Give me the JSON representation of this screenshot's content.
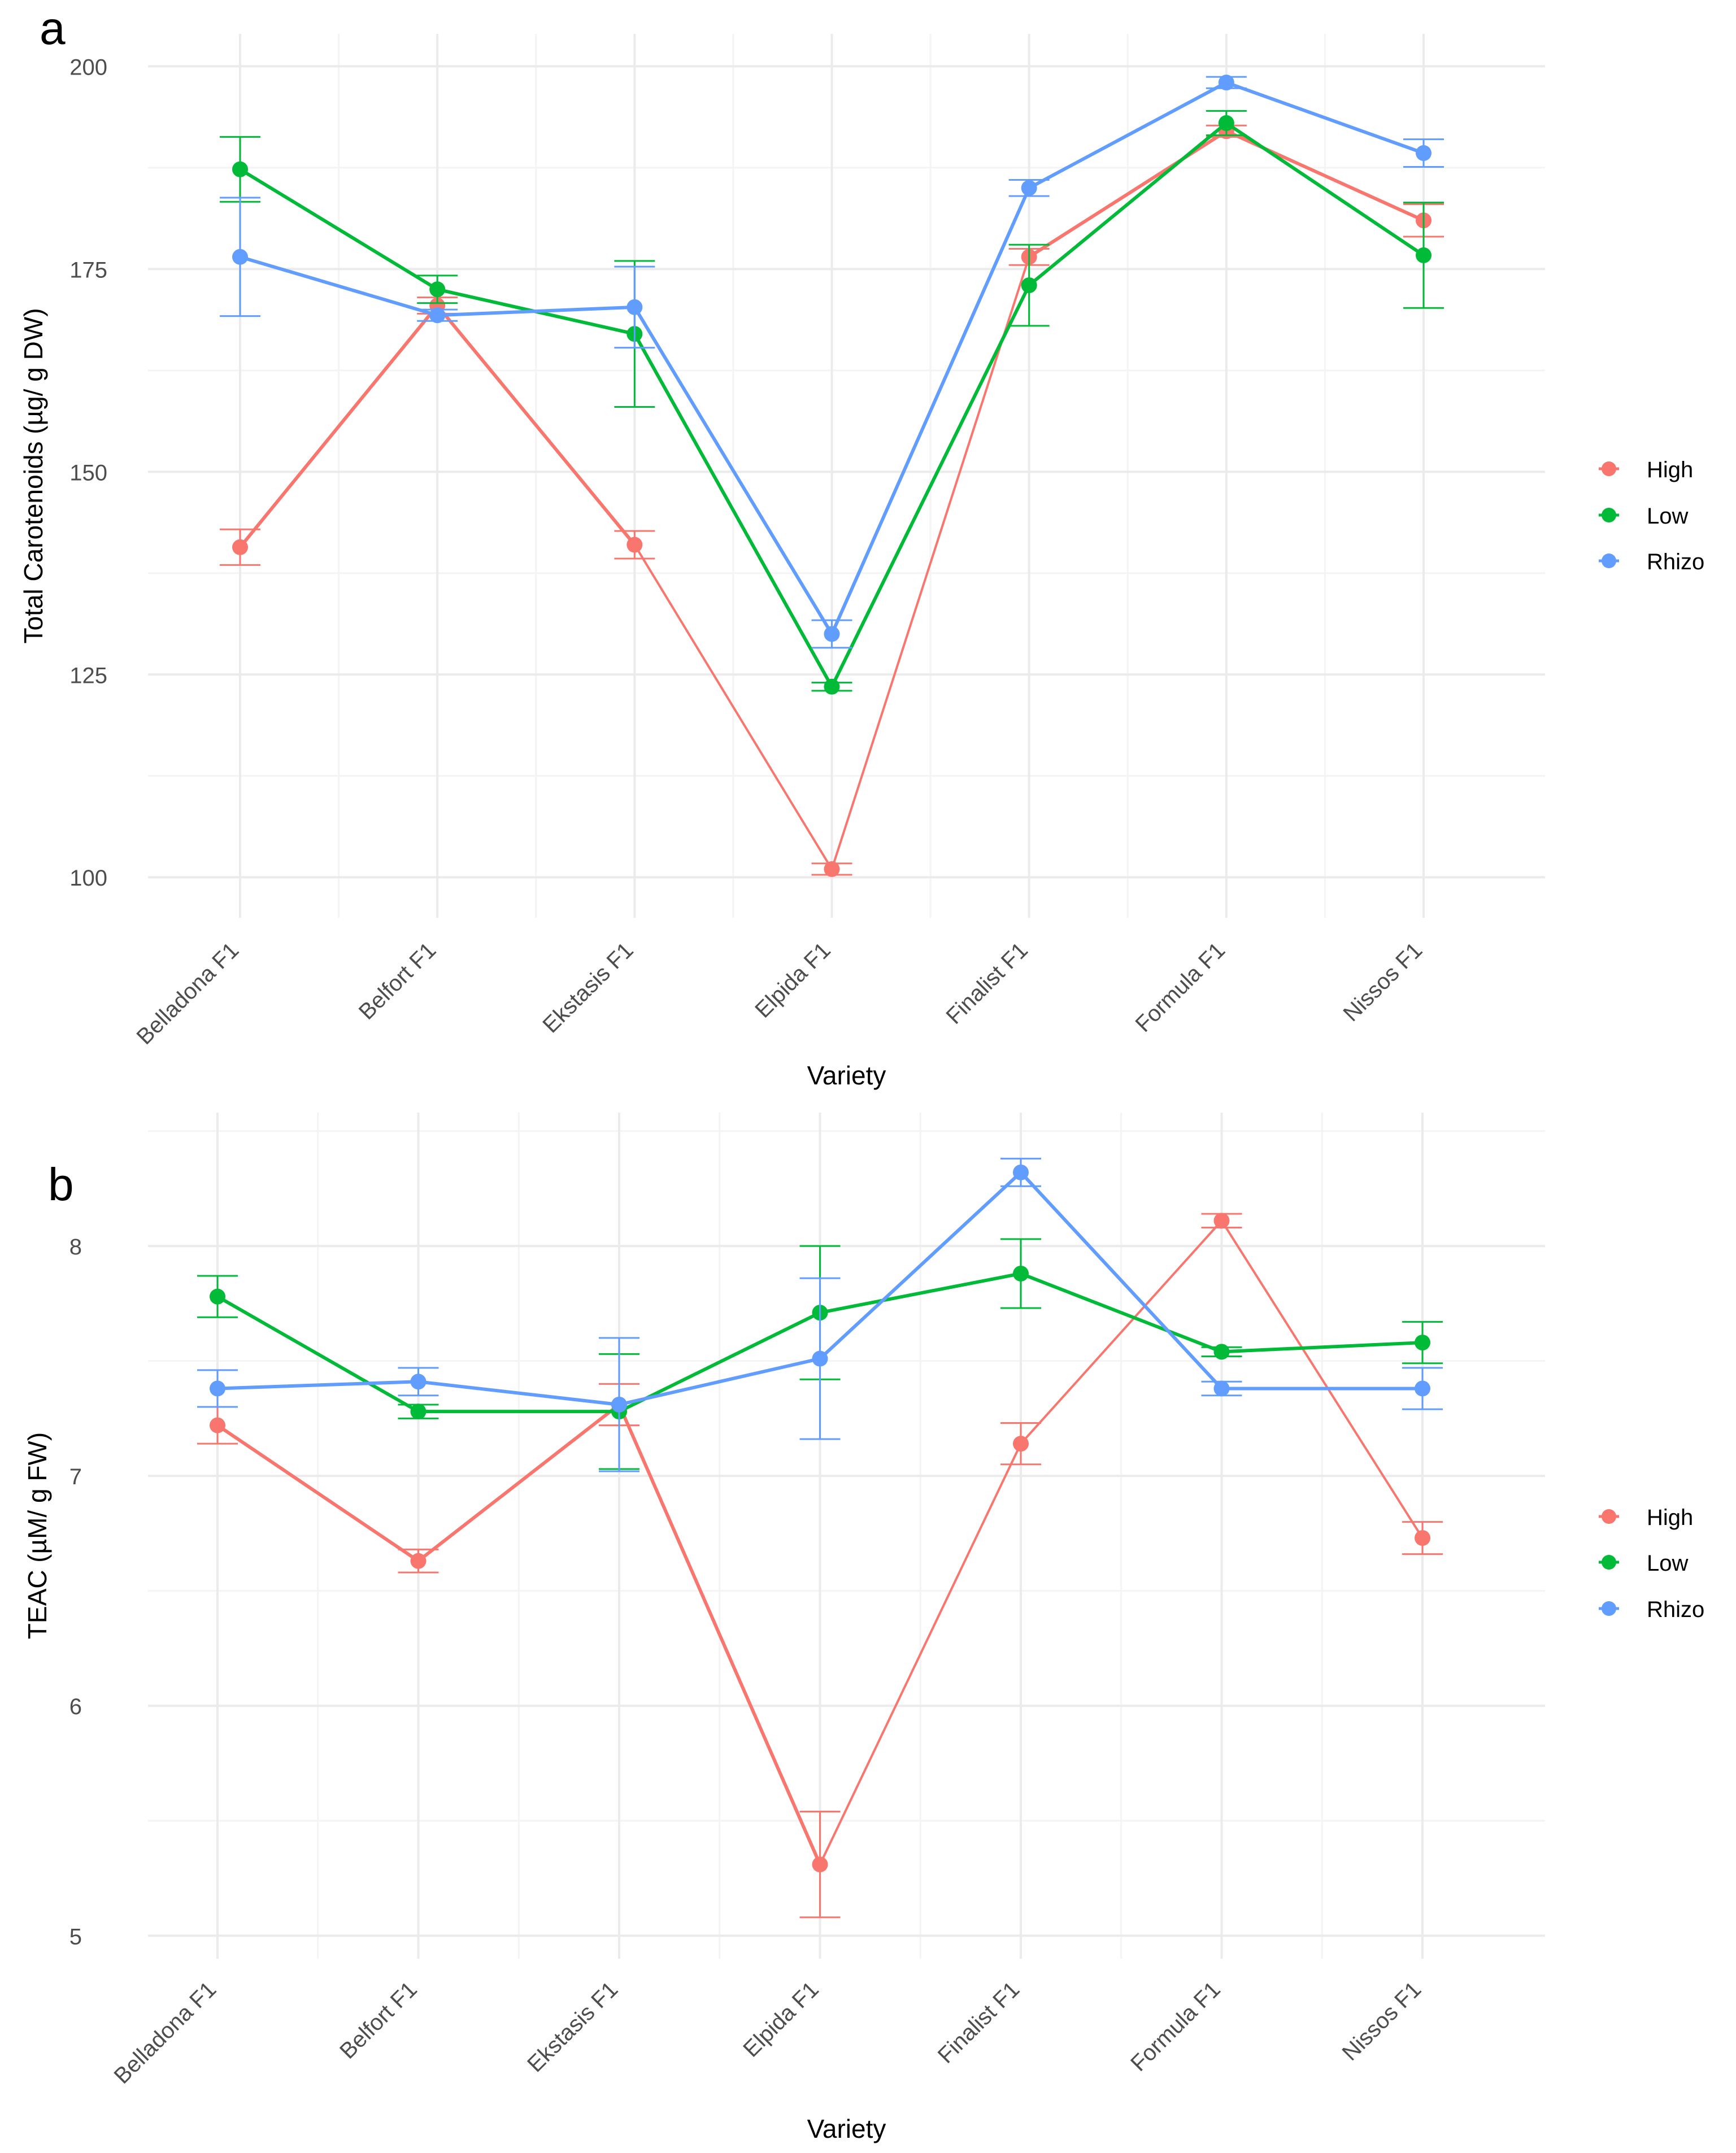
{
  "panels": {
    "a": {
      "letter": "a"
    },
    "b": {
      "letter": "b"
    }
  },
  "colors": {
    "High": "#F8766D",
    "Low": "#00BA38",
    "Rhizo": "#619CFF"
  },
  "chart_data": [
    {
      "id": "a",
      "type": "line",
      "title": "",
      "xlabel": "Variety",
      "ylabel": "Total Carotenoids (µg/ g DW)",
      "categories": [
        "Belladona F1",
        "Belfort F1",
        "Ekstasis F1",
        "Elpida F1",
        "Finalist F1",
        "Formula F1",
        "Nissos F1"
      ],
      "ylim": [
        95,
        204
      ],
      "yticks": [
        100,
        125,
        150,
        175,
        200
      ],
      "grid": true,
      "error_bars": true,
      "legend": {
        "position": "right",
        "entries": [
          "High",
          "Low",
          "Rhizo"
        ]
      },
      "series": [
        {
          "name": "High",
          "values": [
            140.7,
            170.5,
            141.0,
            101.0,
            176.5,
            192.0,
            181.0
          ],
          "errors": [
            2.2,
            1.0,
            1.7,
            0.7,
            1.0,
            0.7,
            2.0
          ]
        },
        {
          "name": "Low",
          "values": [
            187.3,
            172.5,
            167.0,
            123.5,
            173.0,
            193.0,
            176.7
          ],
          "errors": [
            4.0,
            1.7,
            9.0,
            0.5,
            5.0,
            1.5,
            6.5
          ]
        },
        {
          "name": "Rhizo",
          "values": [
            176.5,
            169.3,
            170.3,
            130.0,
            185.0,
            198.0,
            189.3
          ],
          "errors": [
            7.3,
            0.7,
            5.0,
            1.7,
            1.0,
            0.7,
            1.7
          ]
        }
      ]
    },
    {
      "id": "b",
      "type": "line",
      "title": "",
      "xlabel": "Variety",
      "ylabel": "TEAC (µM/ g FW)",
      "categories": [
        "Belladona F1",
        "Belfort F1",
        "Ekstasis F1",
        "Elpida F1",
        "Finalist F1",
        "Formula F1",
        "Nissos F1"
      ],
      "ylim": [
        4.9,
        8.58
      ],
      "yticks": [
        5,
        6,
        7,
        8
      ],
      "grid": true,
      "error_bars": true,
      "legend": {
        "position": "right",
        "entries": [
          "High",
          "Low",
          "Rhizo"
        ]
      },
      "series": [
        {
          "name": "High",
          "values": [
            7.22,
            6.63,
            7.31,
            5.31,
            7.14,
            8.11,
            6.73
          ],
          "errors": [
            0.08,
            0.05,
            0.09,
            0.23,
            0.09,
            0.03,
            0.07
          ]
        },
        {
          "name": "Low",
          "values": [
            7.78,
            7.28,
            7.28,
            7.71,
            7.88,
            7.54,
            7.58
          ],
          "errors": [
            0.09,
            0.03,
            0.25,
            0.29,
            0.15,
            0.02,
            0.09
          ]
        },
        {
          "name": "Rhizo",
          "values": [
            7.38,
            7.41,
            7.31,
            7.51,
            8.32,
            7.38,
            7.38
          ],
          "errors": [
            0.08,
            0.06,
            0.29,
            0.35,
            0.06,
            0.03,
            0.09
          ]
        }
      ]
    }
  ]
}
